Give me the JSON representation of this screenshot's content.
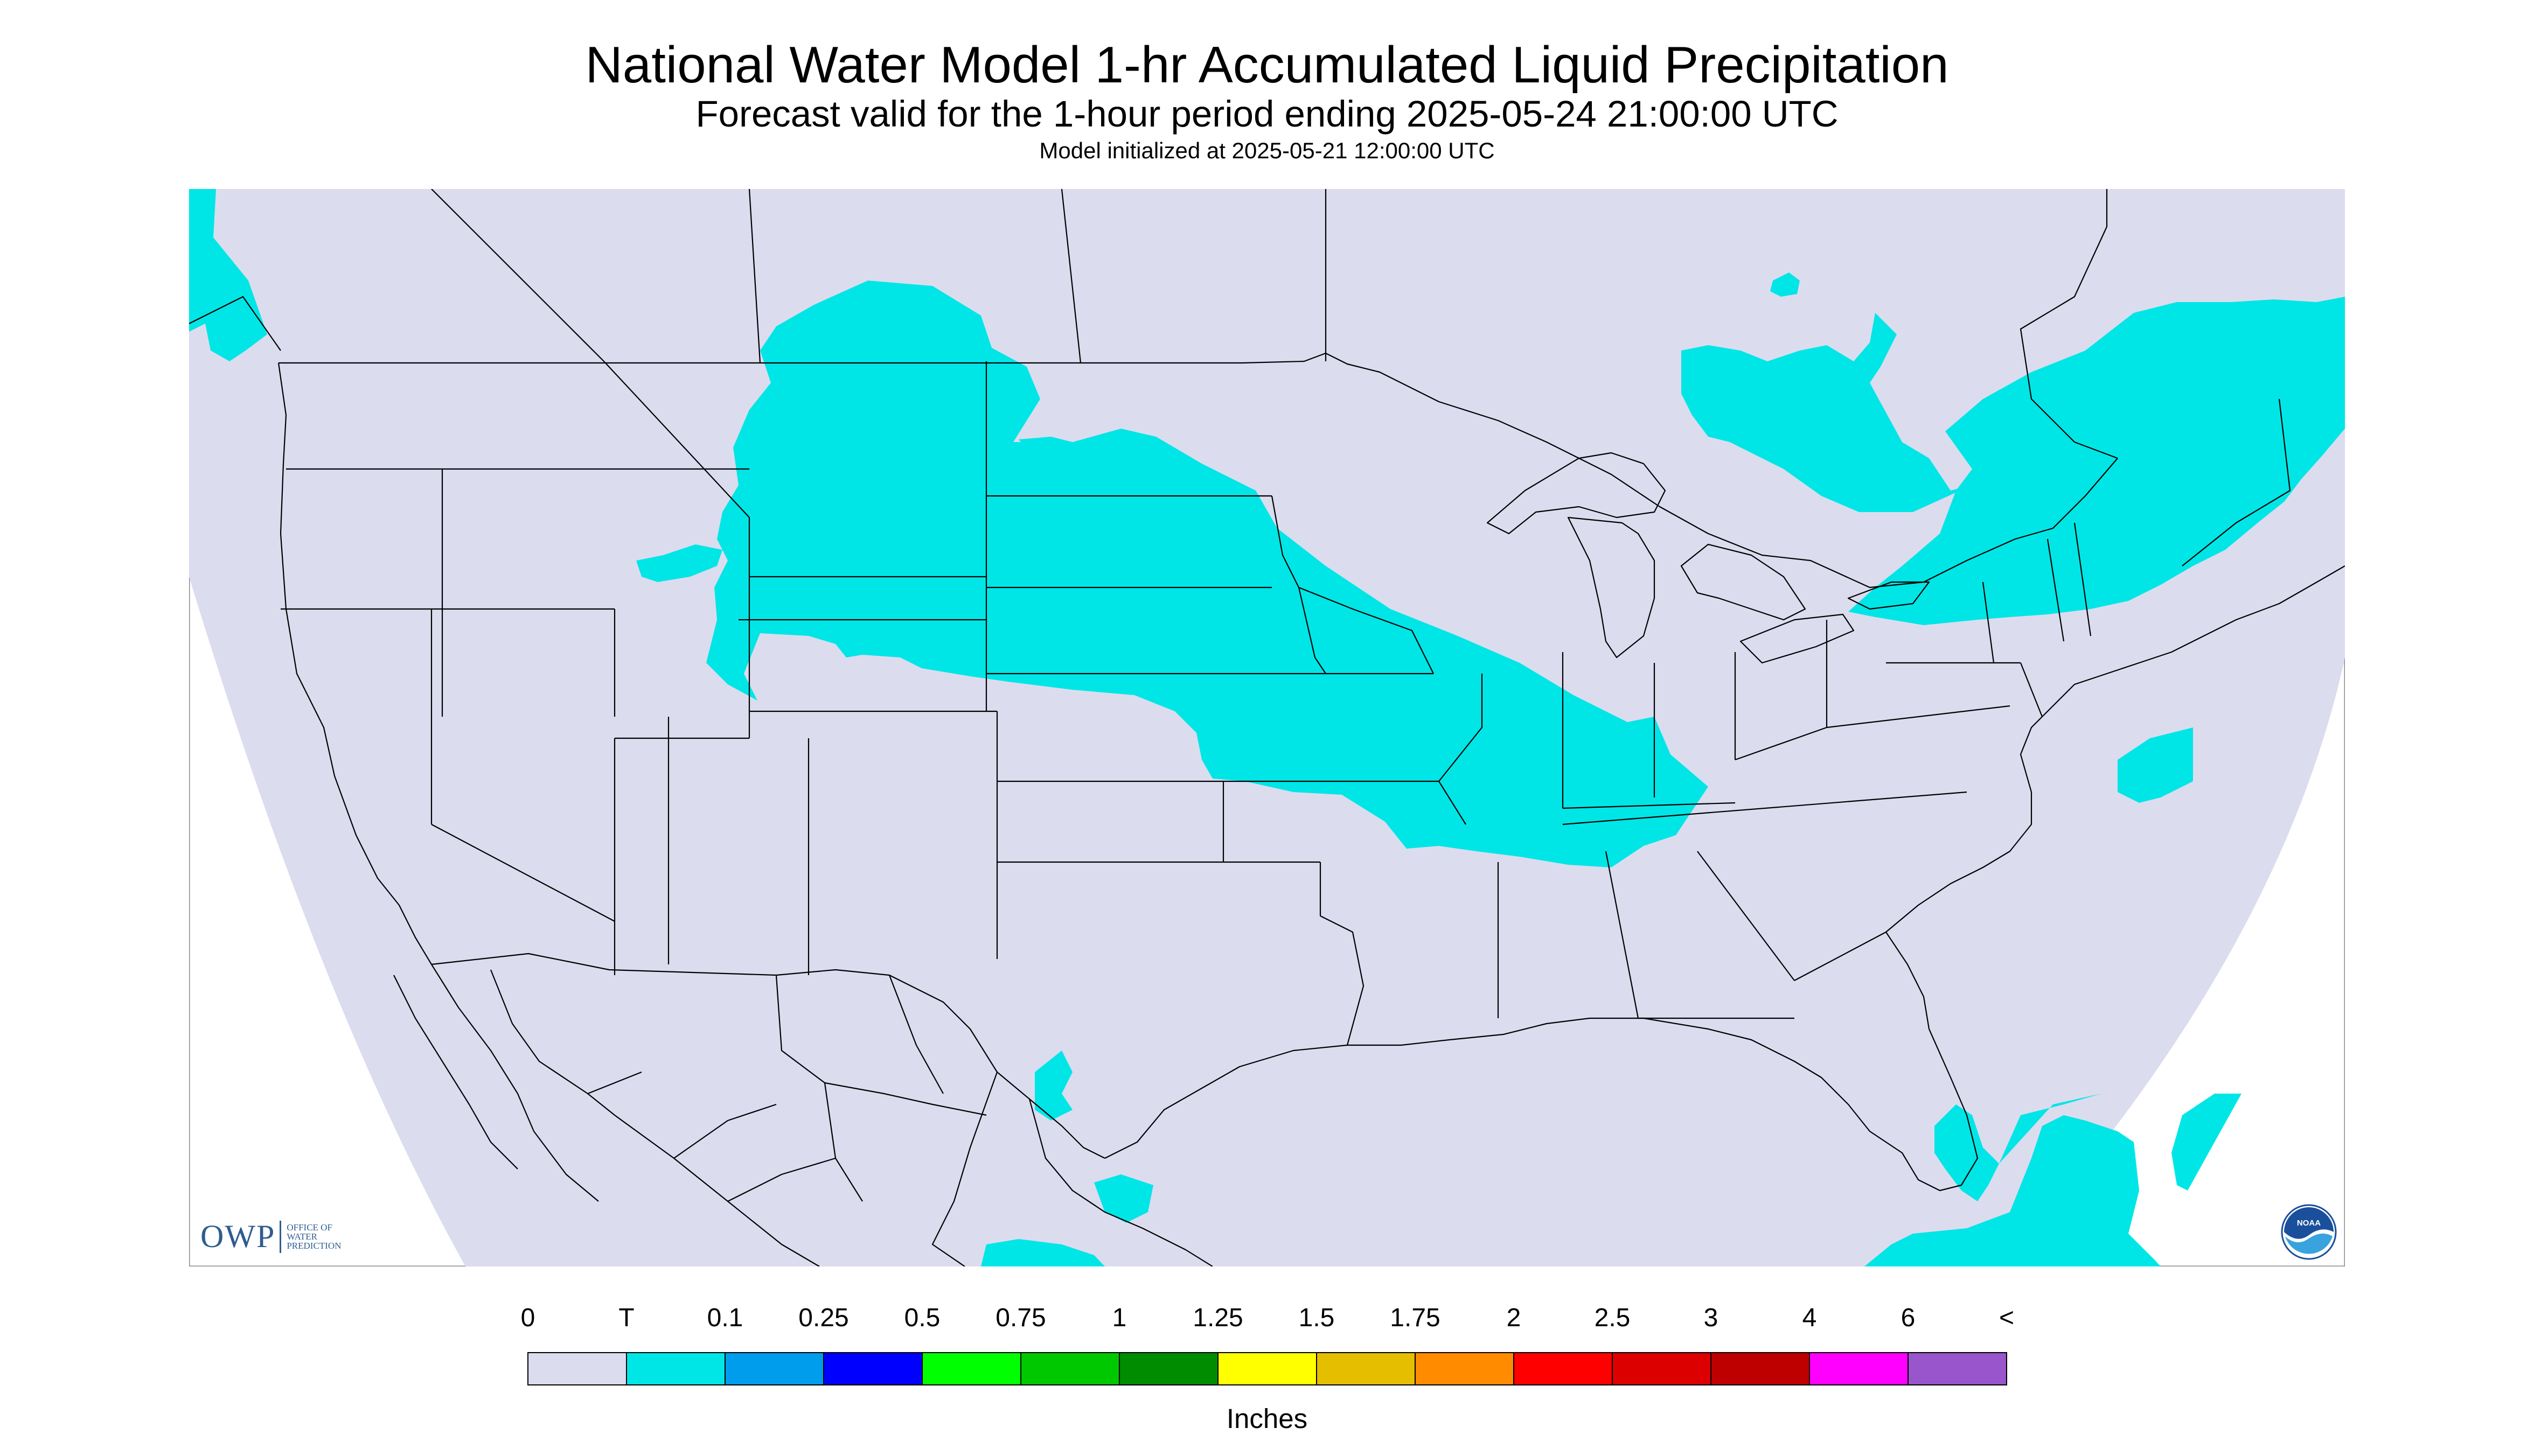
{
  "title": "National Water Model 1-hr Accumulated Liquid Precipitation",
  "subtitle": "Forecast valid for the 1-hour period ending 2025-05-24 21:00:00 UTC",
  "init_line": "Model initialized at 2025-05-21 12:00:00 UTC",
  "logos": {
    "owp_big": "OWP",
    "owp_small": [
      "OFFICE OF",
      "WATER",
      "PREDICTION"
    ],
    "noaa": "NOAA"
  },
  "legend": {
    "labels": [
      "0",
      "T",
      "0.1",
      "0.25",
      "0.5",
      "0.75",
      "1",
      "1.25",
      "1.5",
      "1.75",
      "2",
      "2.5",
      "3",
      "4",
      "6",
      "<"
    ],
    "colors": [
      "#dcdcef",
      "#00e6e6",
      "#009ded",
      "#0000ff",
      "#00ff00",
      "#00c800",
      "#008c00",
      "#ffff00",
      "#e6be00",
      "#ff8c00",
      "#ff0000",
      "#dc0000",
      "#be0000",
      "#ff00ff",
      "#9955cc"
    ],
    "units": "Inches"
  },
  "colors": {
    "domain_fill": "#dcdcef",
    "trace_precip": "#00e6e6",
    "boundary_line": "#000000"
  }
}
